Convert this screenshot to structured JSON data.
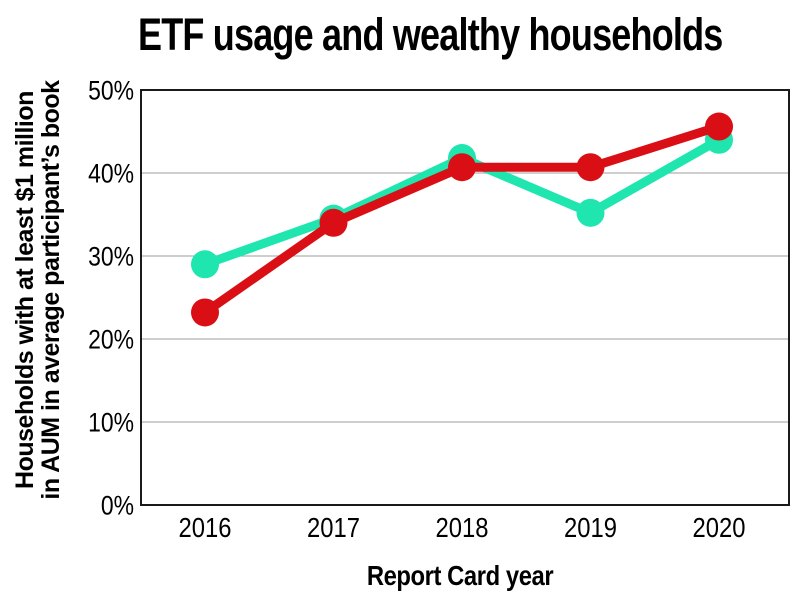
{
  "chart_data": {
    "type": "line",
    "title": "ETF usage and wealthy households",
    "xlabel": "Report Card year",
    "ylabel_line1": "Households with at least $1 million",
    "ylabel_line2": "in AUM in average participant’s book",
    "categories": [
      "2016",
      "2017",
      "2018",
      "2019",
      "2020"
    ],
    "series": [
      {
        "name": "turquoise-series",
        "color": "#1ee6ae",
        "values": [
          29,
          34.5,
          41.8,
          35.2,
          44
        ]
      },
      {
        "name": "red-series",
        "color": "#da0f16",
        "values": [
          23.2,
          34,
          40.7,
          40.7,
          45.6
        ]
      }
    ],
    "ylim": [
      0,
      50
    ],
    "yticks": [
      0,
      10,
      20,
      30,
      40,
      50
    ],
    "ytick_labels": [
      "0%",
      "10%",
      "20%",
      "30%",
      "40%",
      "50%"
    ],
    "grid": true,
    "legend_position": "none",
    "style": {
      "grid_color": "#b0b0b0",
      "frame_color": "#1a1a1a",
      "text_color": "#000000",
      "background": "#ffffff",
      "line_width": 9,
      "marker_radius": 14
    }
  }
}
